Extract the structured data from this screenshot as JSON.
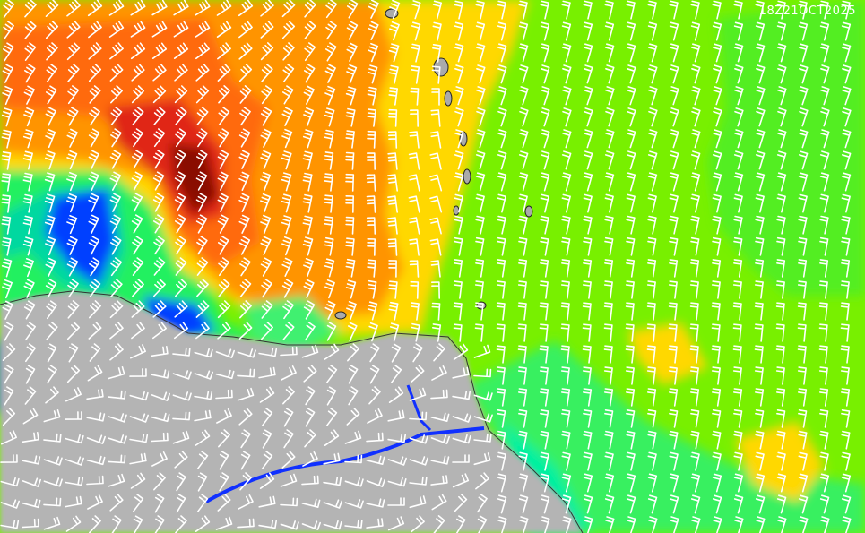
{
  "map": {
    "timestamp": "18Z21OCT2025"
  }
}
